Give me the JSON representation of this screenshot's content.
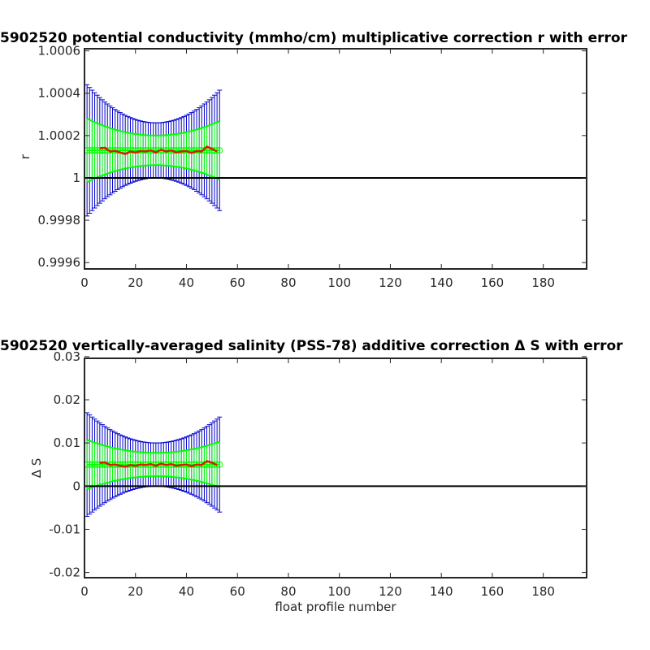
{
  "chart_data": [
    {
      "type": "line",
      "title": "5902520 potential conductivity (mmho/cm) multiplicative correction r with error",
      "xlabel": "",
      "ylabel": "r",
      "xlim": [
        0,
        197
      ],
      "ylim": [
        0.99957,
        1.00061
      ],
      "xticks": [
        0,
        20,
        40,
        60,
        80,
        100,
        120,
        140,
        160,
        180
      ],
      "yticks": [
        0.9996,
        0.9998,
        1,
        1.0002,
        1.0004,
        1.0006
      ],
      "yticklabels": [
        "0.9996",
        "0.9998",
        "1",
        "1.0002",
        "1.0004",
        "1.0006"
      ],
      "reference_line": 1,
      "colors": {
        "correction": "#dd1a00",
        "cal_error": "#00ff00",
        "fit_error": "#0000cc",
        "reference": "#000000"
      },
      "x": [
        1,
        53
      ],
      "series": [
        {
          "role": "correction",
          "x": [
            6,
            8,
            10,
            12,
            14,
            16,
            18,
            20,
            22,
            24,
            26,
            28,
            30,
            32,
            34,
            36,
            38,
            40,
            42,
            44,
            46,
            48,
            50,
            52
          ],
          "values": [
            1.00014,
            1.000142,
            1.000125,
            1.000128,
            1.00012,
            1.000113,
            1.000125,
            1.00012,
            1.000127,
            1.000125,
            1.00013,
            1.00012,
            1.000133,
            1.000125,
            1.00013,
            1.00012,
            1.000125,
            1.000127,
            1.000118,
            1.000127,
            1.000125,
            1.000148,
            1.000137,
            1.000125
          ]
        },
        {
          "role": "cal_error",
          "center": 1.00013,
          "halfwidth_ends": 0.00015,
          "halfwidth_mid": 7e-05,
          "mid_x": 28
        },
        {
          "role": "fit_error",
          "center": 1.00013,
          "halfwidth_ends": 0.00031,
          "halfwidth_mid": 0.00013,
          "mid_x": 28
        }
      ]
    },
    {
      "type": "line",
      "title": "5902520 vertically-averaged salinity (PSS-78) additive correction Δ S with error",
      "xlabel": "float profile number",
      "ylabel": "Δ S",
      "xlim": [
        0,
        197
      ],
      "ylim": [
        -0.0212,
        0.0296
      ],
      "xticks": [
        0,
        20,
        40,
        60,
        80,
        100,
        120,
        140,
        160,
        180
      ],
      "yticks": [
        -0.02,
        -0.01,
        0,
        0.01,
        0.02,
        0.03
      ],
      "yticklabels": [
        "-0.02",
        "-0.01",
        "0",
        "0.01",
        "0.02",
        "0.03"
      ],
      "reference_line": 0,
      "colors": {
        "correction": "#dd1a00",
        "cal_error": "#00ff00",
        "fit_error": "#0000cc",
        "reference": "#000000"
      },
      "x": [
        1,
        53
      ],
      "series": [
        {
          "role": "correction",
          "x": [
            6,
            8,
            10,
            12,
            14,
            16,
            18,
            20,
            22,
            24,
            26,
            28,
            30,
            32,
            34,
            36,
            38,
            40,
            42,
            44,
            46,
            48,
            50,
            52
          ],
          "values": [
            0.0054,
            0.0055,
            0.0049,
            0.005,
            0.0047,
            0.0045,
            0.0049,
            0.0047,
            0.005,
            0.0049,
            0.0051,
            0.0047,
            0.0052,
            0.0049,
            0.0051,
            0.0047,
            0.0049,
            0.005,
            0.0046,
            0.005,
            0.0049,
            0.0058,
            0.0054,
            0.0049
          ]
        },
        {
          "role": "cal_error",
          "center": 0.005,
          "halfwidth_ends": 0.0057,
          "halfwidth_mid": 0.0027,
          "mid_x": 28
        },
        {
          "role": "fit_error",
          "center": 0.005,
          "halfwidth_ends": 0.012,
          "halfwidth_mid": 0.005,
          "mid_x": 28
        }
      ]
    }
  ]
}
